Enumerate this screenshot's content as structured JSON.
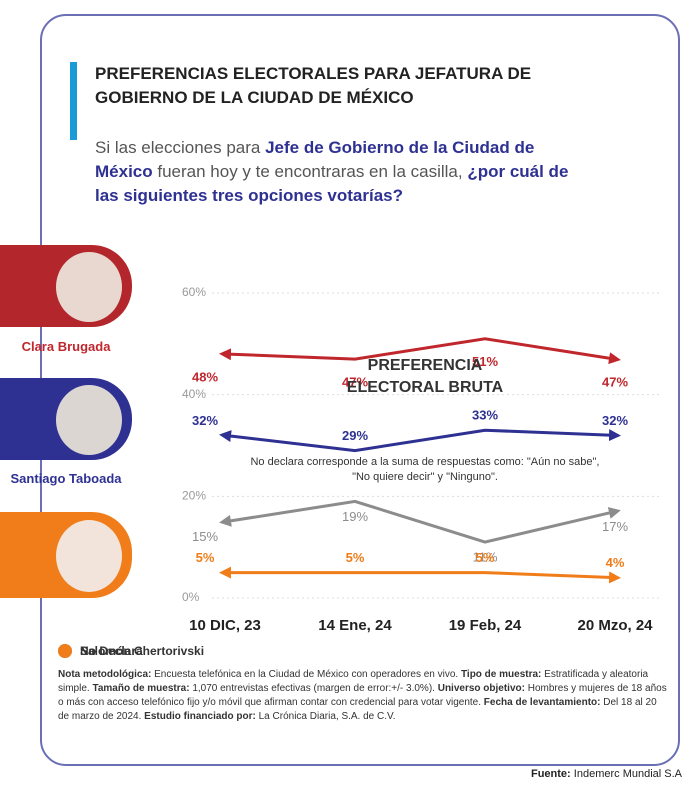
{
  "chart_data": {
    "type": "line",
    "title": "PREFERENCIAS ELECTORALES PARA JEFATURA DE GOBIERNO DE LA CIUDAD DE MÉXICO",
    "subtitle_parts": [
      {
        "text": "Si las elecciones para ",
        "emphasis": false
      },
      {
        "text": "Jefe de Gobierno de la Ciudad de México",
        "emphasis": true
      },
      {
        "text": " fueran hoy y te encontraras en la casilla, ",
        "emphasis": false
      },
      {
        "text": "¿por cuál de las siguientes tres opciones votarías?",
        "emphasis": true
      }
    ],
    "annotation": "PREFERENCIA ELECTORAL BRUTA",
    "note": "No declara corresponde a la suma de respuestas como: \"Aún no sabe\", \"No quiere decir\" y \"Ninguno\".",
    "categories": [
      "10 DIC, 23",
      "14 Ene, 24",
      "19 Feb, 24",
      "20 Mzo, 24"
    ],
    "series": [
      {
        "name": "Clara Brugada",
        "color": "#c0272d",
        "values": [
          48,
          47,
          51,
          47
        ],
        "value_labels": [
          "48%",
          "47%",
          "51%",
          "47%"
        ]
      },
      {
        "name": "Santiago Taboada",
        "color": "#2e3192",
        "values": [
          32,
          29,
          33,
          32
        ],
        "value_labels": [
          "32%",
          "29%",
          "33%",
          "32%"
        ]
      },
      {
        "name": "No Declara",
        "color": "#8c8c8c",
        "values": [
          15,
          19,
          11,
          17
        ],
        "value_labels": [
          "15%",
          "19%",
          "11%",
          "17%"
        ]
      },
      {
        "name": "Salomón Chertorivski",
        "color": "#f07d1a",
        "values": [
          5,
          5,
          5,
          4
        ],
        "value_labels": [
          "5%",
          "5%",
          "5%",
          "4%"
        ]
      }
    ],
    "ylim": [
      0,
      60
    ],
    "yticks": [
      {
        "value": 0,
        "label": "0%"
      },
      {
        "value": 20,
        "label": "20%"
      },
      {
        "value": 40,
        "label": "40%"
      },
      {
        "value": 60,
        "label": "60%"
      }
    ],
    "grid": true,
    "methodology": [
      {
        "label": "Nota metodológica:",
        "text": "Encuesta telefónica en la Ciudad de México con operadores en vivo."
      },
      {
        "label": "Tipo de muestra:",
        "text": "Estratificada y aleatoria simple."
      },
      {
        "label": "Tamaño de muestra:",
        "text": "1,070 entrevistas efectivas (margen de error:+/- 3.0%)."
      },
      {
        "label": "Universo objetivo:",
        "text": "Hombres y mujeres de 18 años o más con acceso telefónico fijo y/o móvil que afirman contar con credencial para votar vigente."
      },
      {
        "label": "Fecha de levantamiento:",
        "text": "Del 18 al 20 de marzo de 2024."
      },
      {
        "label": "Estudio financiado por:",
        "text": "La Crónica Diaria, S.A. de C.V."
      }
    ],
    "source": {
      "label": "Fuente:",
      "text": "Indemerc Mundial S.A"
    }
  }
}
